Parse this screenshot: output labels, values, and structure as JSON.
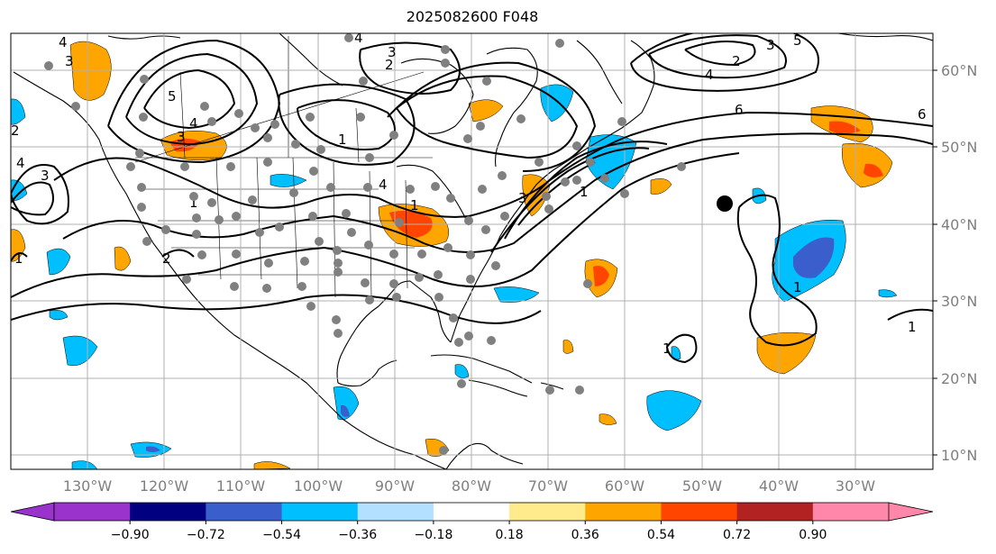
{
  "title": "2025082600 F048",
  "lat_labels": [
    "60°N",
    "50°N",
    "40°N",
    "30°N",
    "20°N",
    "10°N"
  ],
  "lon_labels": [
    "130°W",
    "120°W",
    "110°W",
    "100°W",
    "90°W",
    "80°W",
    "70°W",
    "60°W",
    "50°W",
    "40°W",
    "30°W"
  ],
  "colorbar": {
    "colors": [
      "#9933cc",
      "#000080",
      "#3a5fcd",
      "#00bfff",
      "#b3e0ff",
      "#ffffff",
      "#ffeb8c",
      "#ffa500",
      "#ff4500",
      "#b22222",
      "#ff88aa"
    ],
    "under_color": "#9933cc",
    "over_color": "#ff88aa",
    "tick_labels": [
      "−0.90",
      "−0.72",
      "−0.54",
      "−0.36",
      "−0.18",
      "0.18",
      "0.36",
      "0.54",
      "0.72",
      "0.90"
    ]
  },
  "contour_labels": [
    "4",
    "3",
    "2",
    "4",
    "3",
    "2",
    "1",
    "5",
    "4",
    "3",
    "4",
    "3",
    "2",
    "1",
    "1",
    "3",
    "2",
    "4",
    "6",
    "6",
    "1",
    "1",
    "1",
    "5",
    "4",
    "3",
    "1",
    "1"
  ],
  "colors": {
    "positive_fill": "#ffa500",
    "positive_core": "#ff4500",
    "negative_fill": "#00bfff",
    "negative_core": "#3a5fcd",
    "station": "#808080",
    "contour": "#000000"
  }
}
